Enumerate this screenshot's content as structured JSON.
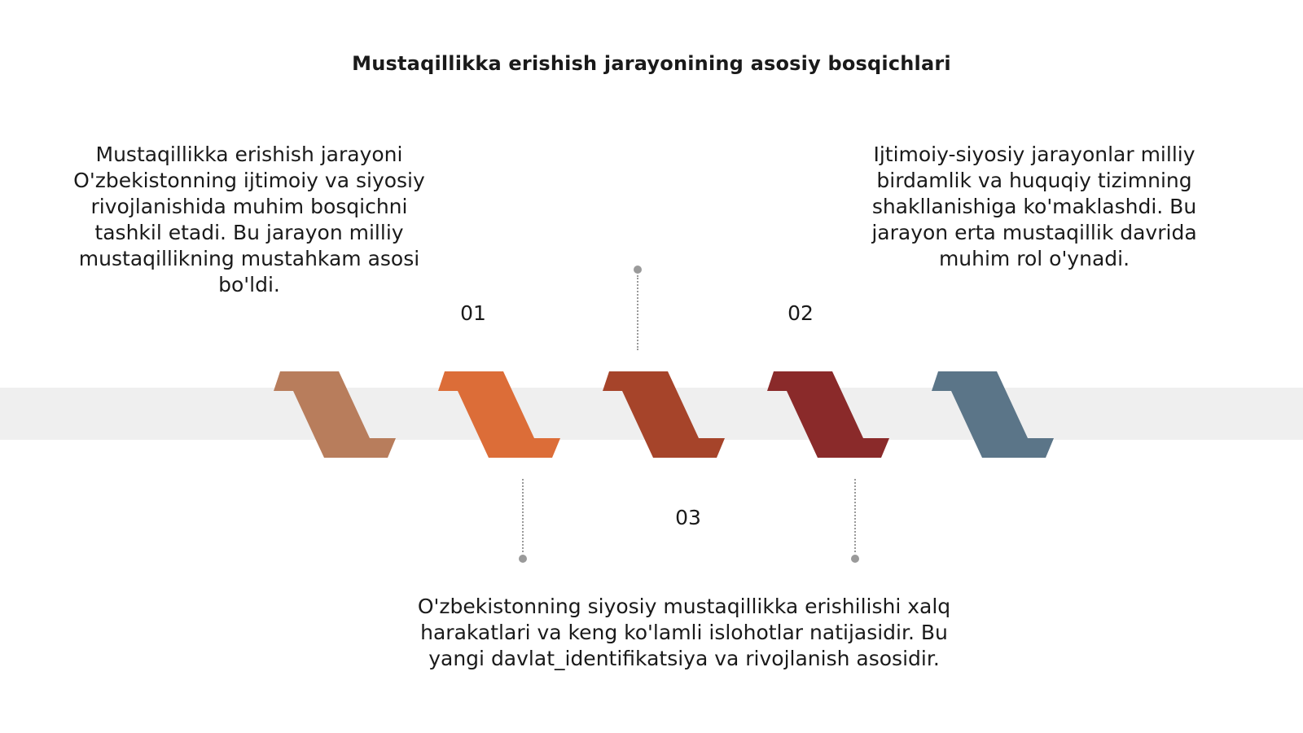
{
  "title": "Mustaqillikka erishish jarayonining asosiy bosqichlari",
  "steps": [
    {
      "number": "01",
      "text": "Mustaqillikka erishish jarayoni O'zbekistonning ijtimoiy va siyosiy rivojlanishida muhim bosqichni tashkil etadi. Bu jarayon milliy mustaqillikning mustahkam asosi bo'ldi."
    },
    {
      "number": "02",
      "text": "Ijtimoiy-siyosiy jarayonlar milliy birdamlik va huquqiy tizimning shakllanishiga ko'maklashdi. Bu jarayon erta mustaqillik davrida muhim rol o'ynadi."
    },
    {
      "number": "03",
      "text": "O'zbekistonning siyosiy mustaqillikka erishilishi xalq harakatlari va keng ko'lamli islohotlar natijasidir. Bu yangi davlat_identifikatsiya va rivojlanish asosidir."
    }
  ],
  "colors": {
    "chevrons": [
      "#b87d5c",
      "#dc6d38",
      "#a6442a",
      "#8a2a2a",
      "#5b7588"
    ],
    "band": "#efefef",
    "connector": "#9a9a9a"
  }
}
